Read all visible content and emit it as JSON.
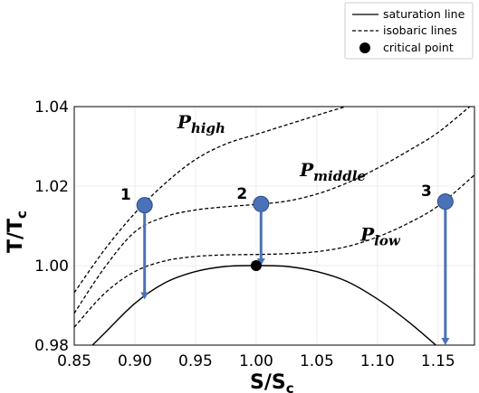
{
  "chart_data": {
    "type": "line",
    "xlabel": "S/S",
    "xlabel_sub": "c",
    "ylabel": "T/T",
    "ylabel_sub": "c",
    "xlim": [
      0.85,
      1.18
    ],
    "ylim": [
      0.98,
      1.04
    ],
    "xticks": [
      0.85,
      0.9,
      0.95,
      1.0,
      1.05,
      1.1,
      1.15
    ],
    "xtick_labels": [
      "0.85",
      "0.90",
      "0.95",
      "1.00",
      "1.05",
      "1.10",
      "1.15"
    ],
    "yticks": [
      0.98,
      1.0,
      1.02,
      1.04
    ],
    "ytick_labels": [
      "0.98",
      "1.00",
      "1.02",
      "1.04"
    ],
    "grid": true,
    "legend_position": "top-right",
    "legend": [
      {
        "label": "saturation line",
        "style": "solid"
      },
      {
        "label": "isobaric lines",
        "style": "dashed"
      },
      {
        "label": "critical point",
        "style": "marker"
      }
    ],
    "saturation_line": {
      "name": "saturation line",
      "x": [
        0.855,
        0.875,
        0.9,
        0.925,
        0.95,
        0.975,
        1.0,
        1.025,
        1.05,
        1.075,
        1.1,
        1.125,
        1.15,
        1.17
      ],
      "y": [
        0.977,
        0.983,
        0.9905,
        0.9957,
        0.9985,
        0.9998,
        1.0,
        0.9998,
        0.9985,
        0.996,
        0.9916,
        0.986,
        0.9795,
        0.974
      ]
    },
    "isobaric_lines": [
      {
        "name": "P",
        "sub": "high",
        "x": [
          0.85,
          0.875,
          0.9,
          0.925,
          0.95,
          0.975,
          1.0,
          1.025,
          1.05,
          1.065,
          1.085
        ],
        "y": [
          0.9932,
          1.004,
          1.0132,
          1.0207,
          1.0267,
          1.0306,
          1.033,
          1.0354,
          1.0378,
          1.0392,
          1.041
        ]
      },
      {
        "name": "P",
        "sub": "middle",
        "x": [
          0.85,
          0.875,
          0.9,
          0.925,
          0.95,
          0.975,
          1.0,
          1.025,
          1.05,
          1.075,
          1.1,
          1.125,
          1.15,
          1.18
        ],
        "y": [
          0.988,
          0.9995,
          1.0085,
          1.0123,
          1.014,
          1.0148,
          1.0154,
          1.0162,
          1.018,
          1.0208,
          1.0245,
          1.0288,
          1.0335,
          1.041
        ]
      },
      {
        "name": "P",
        "sub": "low",
        "x": [
          0.85,
          0.875,
          0.9,
          0.925,
          0.95,
          0.975,
          1.0,
          1.025,
          1.05,
          1.075,
          1.1,
          1.125,
          1.15,
          1.18
        ],
        "y": [
          0.9845,
          0.993,
          0.9985,
          1.0012,
          1.0023,
          1.0027,
          1.0028,
          1.003,
          1.0035,
          1.0048,
          1.0072,
          1.0106,
          1.015,
          1.0228
        ]
      }
    ],
    "isobar_labels": [
      {
        "text": "P",
        "sub": "high",
        "x": 0.935,
        "y": 1.0345
      },
      {
        "text": "P",
        "sub": "middle",
        "x": 1.036,
        "y": 1.0225
      },
      {
        "text": "P",
        "sub": "low",
        "x": 1.086,
        "y": 1.0063
      }
    ],
    "critical_point": {
      "name": "critical point",
      "x": 1.0,
      "y": 1.0
    },
    "process_points": [
      {
        "label": "1",
        "x": 0.908,
        "y": 1.0152,
        "arrow_to_y": 0.9915
      },
      {
        "label": "2",
        "x": 1.004,
        "y": 1.0155,
        "arrow_to_y": 1.0
      },
      {
        "label": "3",
        "x": 1.156,
        "y": 1.0161,
        "arrow_to_y": 0.98
      }
    ],
    "colors": {
      "marker": "#4a72b8",
      "marker_edge": "#2a4b85",
      "arrow": "#4a72b8",
      "line": "#000000",
      "grid": "#ececec"
    }
  }
}
